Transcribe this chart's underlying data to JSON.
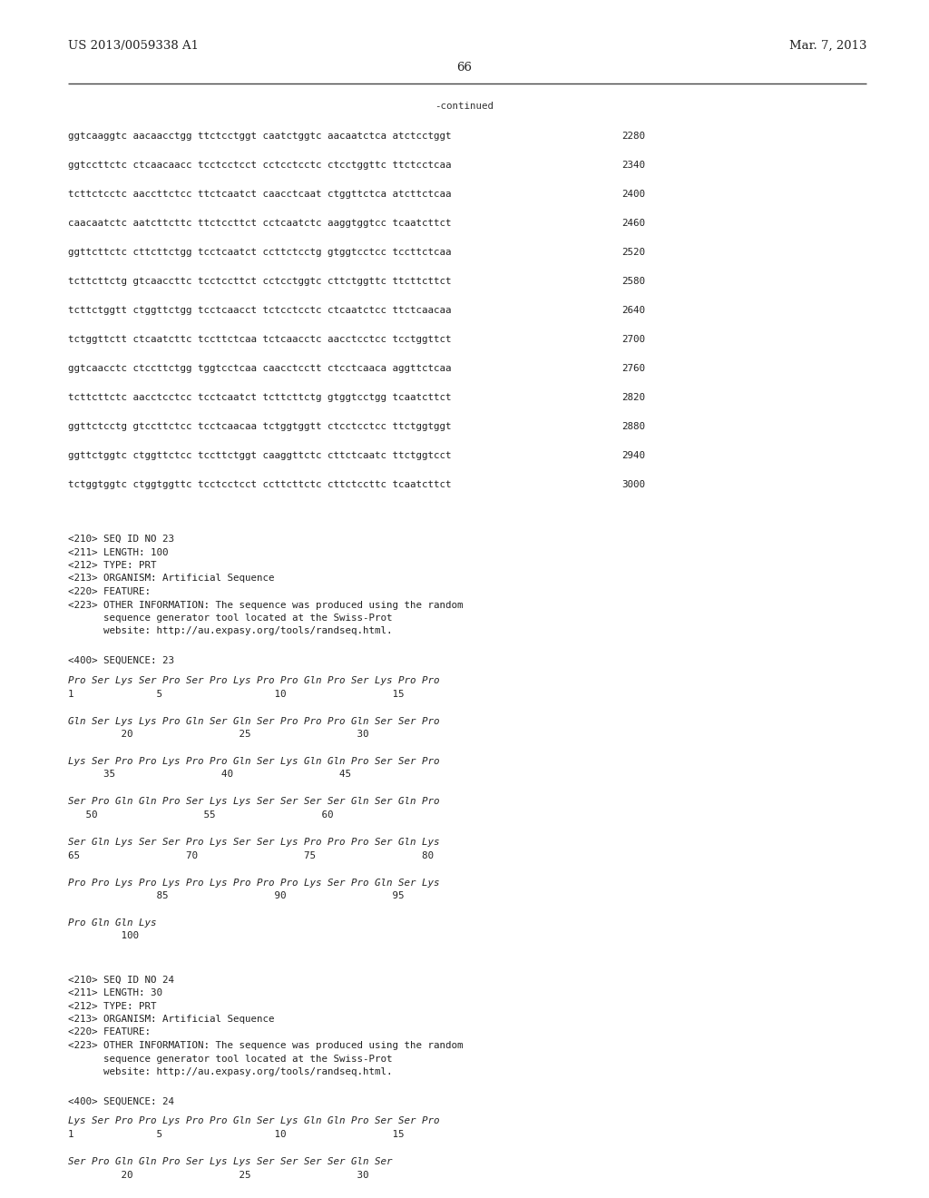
{
  "background_color": "#ffffff",
  "left_header": "US 2013/0059338 A1",
  "right_header": "Mar. 7, 2013",
  "page_number": "66",
  "continued_label": "-continued",
  "dna_lines": [
    [
      "ggtcaaggtc aacaacctgg ttctcctggt caatctggtc aacaatctca atctcctggt",
      "2280"
    ],
    [
      "ggtccttctc ctcaacaacc tcctcctcct cctcctcctc ctcctggttc ttctcctcaa",
      "2340"
    ],
    [
      "tcttctcctc aaccttctcc ttctcaatct caacctcaat ctggttctca atcttctcaa",
      "2400"
    ],
    [
      "caacaatctc aatcttcttc ttctccttct cctcaatctc aaggtggtcc tcaatcttct",
      "2460"
    ],
    [
      "ggttcttctc cttcttctgg tcctcaatct ccttctcctg gtggtcctcc tccttctcaa",
      "2520"
    ],
    [
      "tcttcttctg gtcaaccttc tcctccttct cctcctggtc cttctggttc ttcttcttct",
      "2580"
    ],
    [
      "tcttctggtt ctggttctgg tcctcaacct tctcctcctc ctcaatctcc ttctcaacaa",
      "2640"
    ],
    [
      "tctggttctt ctcaatcttc tccttctcaa tctcaacctc aacctcctcc tcctggttct",
      "2700"
    ],
    [
      "ggtcaacctc ctccttctgg tggtcctcaa caacctcctt ctcctcaaca aggttctcaa",
      "2760"
    ],
    [
      "tcttcttctc aacctcctcc tcctcaatct tcttcttctg gtggtcctgg tcaatcttct",
      "2820"
    ],
    [
      "ggttctcctg gtccttctcc tcctcaacaa tctggtggtt ctcctcctcc ttctggtggt",
      "2880"
    ],
    [
      "ggttctggtc ctggttctcc tccttctggt caaggttctc cttctcaatc ttctggtcct",
      "2940"
    ],
    [
      "tctggtggtc ctggtggttc tcctcctcct ccttcttctc cttctccttc tcaatcttct",
      "3000"
    ]
  ],
  "meta_lines_23": [
    "<210> SEQ ID NO 23",
    "<211> LENGTH: 100",
    "<212> TYPE: PRT",
    "<213> ORGANISM: Artificial Sequence",
    "<220> FEATURE:",
    "<223> OTHER INFORMATION: The sequence was produced using the random",
    "      sequence generator tool located at the Swiss-Prot",
    "      website: http://au.expasy.org/tools/randseq.html."
  ],
  "seq23_label": "<400> SEQUENCE: 23",
  "seq23_rows": [
    {
      "aa": "Pro Ser Lys Ser Pro Ser Pro Lys Pro Pro Gln Pro Ser Lys Pro Pro",
      "nums": "1              5                   10                  15"
    },
    {
      "aa": "Gln Ser Lys Lys Pro Gln Ser Gln Ser Pro Pro Pro Gln Ser Ser Pro",
      "nums": "         20                  25                  30"
    },
    {
      "aa": "Lys Ser Pro Pro Lys Pro Pro Gln Ser Lys Gln Gln Pro Ser Ser Pro",
      "nums": "      35                  40                  45"
    },
    {
      "aa": "Ser Pro Gln Gln Pro Ser Lys Lys Ser Ser Ser Ser Gln Ser Gln Pro",
      "nums": "   50                  55                  60"
    },
    {
      "aa": "Ser Gln Lys Ser Ser Pro Lys Ser Ser Lys Pro Pro Pro Ser Gln Lys",
      "nums": "65                  70                  75                  80"
    },
    {
      "aa": "Pro Pro Lys Pro Lys Pro Lys Pro Pro Pro Lys Ser Pro Gln Ser Lys",
      "nums": "               85                  90                  95"
    },
    {
      "aa": "Pro Gln Gln Lys",
      "nums": "         100"
    }
  ],
  "meta_lines_24": [
    "<210> SEQ ID NO 24",
    "<211> LENGTH: 30",
    "<212> TYPE: PRT",
    "<213> ORGANISM: Artificial Sequence",
    "<220> FEATURE:",
    "<223> OTHER INFORMATION: The sequence was produced using the random",
    "      sequence generator tool located at the Swiss-Prot",
    "      website: http://au.expasy.org/tools/randseq.html."
  ],
  "seq24_label": "<400> SEQUENCE: 24",
  "seq24_rows": [
    {
      "aa": "Lys Ser Pro Pro Lys Pro Pro Gln Ser Lys Gln Gln Pro Ser Ser Pro",
      "nums": "1              5                   10                  15"
    },
    {
      "aa": "Ser Pro Gln Gln Pro Ser Lys Lys Ser Ser Ser Ser Gln Ser",
      "nums": "         20                  25                  30"
    }
  ]
}
